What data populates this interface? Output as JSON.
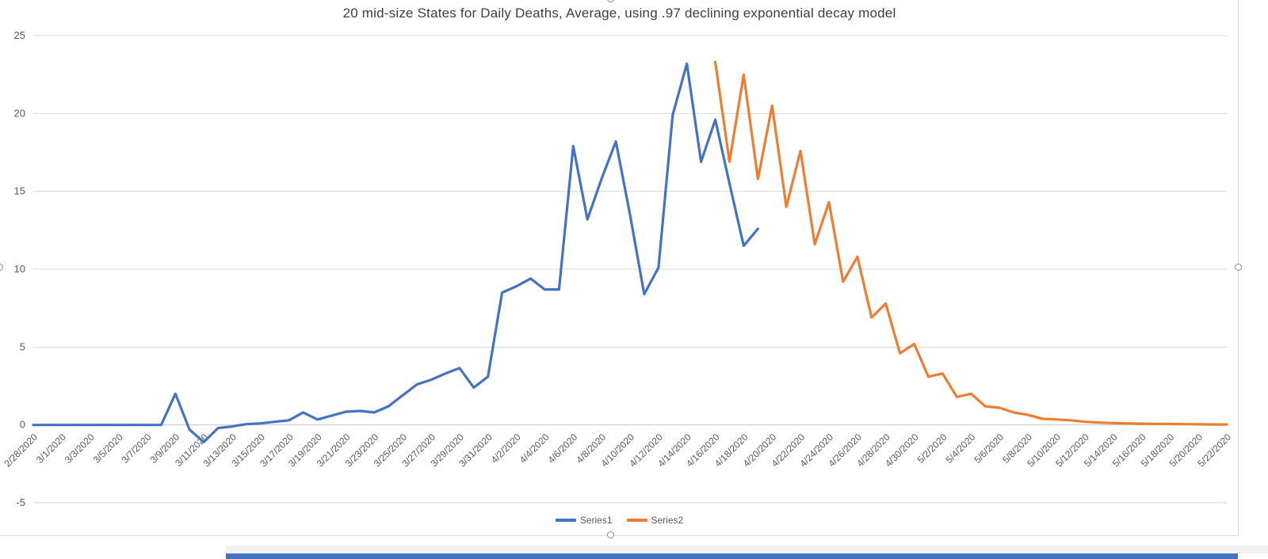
{
  "colors": {
    "series1": "#4472C4",
    "series2": "#ED7D31",
    "gridline": "#D9D9D9",
    "axis_line": "#C6C6C6",
    "axis_text": "#595959",
    "title_text": "#3F3F3F",
    "chart_border": "#D8D8D8",
    "bottom_bar": "#4472C4"
  },
  "chart_data": {
    "type": "line",
    "title": "20 mid-size States for Daily Deaths, Average, using .97 declining exponential decay model",
    "xlabel": "",
    "ylabel": "",
    "ylim": [
      -5,
      25
    ],
    "yticks": [
      25,
      20,
      15,
      10,
      5,
      0,
      -5
    ],
    "x_tick_step": 2,
    "grid": true,
    "legend_position": "bottom",
    "x": [
      "2/28/2020",
      "2/29/2020",
      "3/1/2020",
      "3/2/2020",
      "3/3/2020",
      "3/4/2020",
      "3/5/2020",
      "3/6/2020",
      "3/7/2020",
      "3/8/2020",
      "3/9/2020",
      "3/10/2020",
      "3/11/2020",
      "3/12/2020",
      "3/13/2020",
      "3/14/2020",
      "3/15/2020",
      "3/16/2020",
      "3/17/2020",
      "3/18/2020",
      "3/19/2020",
      "3/20/2020",
      "3/21/2020",
      "3/22/2020",
      "3/23/2020",
      "3/24/2020",
      "3/25/2020",
      "3/26/2020",
      "3/27/2020",
      "3/28/2020",
      "3/29/2020",
      "3/30/2020",
      "3/31/2020",
      "4/1/2020",
      "4/2/2020",
      "4/3/2020",
      "4/4/2020",
      "4/5/2020",
      "4/6/2020",
      "4/7/2020",
      "4/8/2020",
      "4/9/2020",
      "4/10/2020",
      "4/11/2020",
      "4/12/2020",
      "4/13/2020",
      "4/14/2020",
      "4/15/2020",
      "4/16/2020",
      "4/17/2020",
      "4/18/2020",
      "4/19/2020",
      "4/20/2020",
      "4/21/2020",
      "4/22/2020",
      "4/23/2020",
      "4/24/2020",
      "4/25/2020",
      "4/26/2020",
      "4/27/2020",
      "4/28/2020",
      "4/29/2020",
      "4/30/2020",
      "5/1/2020",
      "5/2/2020",
      "5/3/2020",
      "5/4/2020",
      "5/5/2020",
      "5/6/2020",
      "5/7/2020",
      "5/8/2020",
      "5/9/2020",
      "5/10/2020",
      "5/11/2020",
      "5/12/2020",
      "5/13/2020",
      "5/14/2020",
      "5/15/2020",
      "5/16/2020",
      "5/17/2020",
      "5/18/2020",
      "5/19/2020",
      "5/20/2020",
      "5/21/2020",
      "5/22/2020"
    ],
    "series": [
      {
        "name": "Series1",
        "color": "#4472C4",
        "values": [
          0,
          0,
          0,
          0,
          0,
          0,
          0,
          0,
          0,
          0,
          2,
          -0.3,
          -1.1,
          -0.2,
          -0.1,
          0.05,
          0.1,
          0.2,
          0.3,
          0.8,
          0.35,
          0.6,
          0.85,
          0.9,
          0.8,
          1.2,
          1.9,
          2.6,
          2.9,
          3.3,
          3.65,
          2.4,
          3.1,
          8.5,
          8.9,
          9.4,
          8.7,
          8.7,
          17.9,
          13.2,
          15.8,
          18.2,
          13.5,
          8.4,
          10.1,
          19.9,
          23.2,
          16.9,
          19.6,
          15.5,
          11.5,
          12.6,
          null,
          null,
          null,
          null,
          null,
          null,
          null,
          null,
          null,
          null,
          null,
          null,
          null,
          null,
          null,
          null,
          null,
          null,
          null,
          null,
          null,
          null,
          null,
          null,
          null,
          null,
          null,
          null,
          null,
          null,
          null,
          null,
          null
        ]
      },
      {
        "name": "Series2",
        "color": "#ED7D31",
        "values": [
          null,
          null,
          null,
          null,
          null,
          null,
          null,
          null,
          null,
          null,
          null,
          null,
          null,
          null,
          null,
          null,
          null,
          null,
          null,
          null,
          null,
          null,
          null,
          null,
          null,
          null,
          null,
          null,
          null,
          null,
          null,
          null,
          null,
          null,
          null,
          null,
          null,
          null,
          null,
          null,
          null,
          null,
          null,
          null,
          null,
          null,
          null,
          null,
          23.3,
          16.9,
          22.5,
          15.8,
          20.5,
          14,
          17.6,
          11.6,
          14.3,
          9.2,
          10.8,
          6.9,
          7.8,
          4.6,
          5.2,
          3.1,
          3.3,
          1.8,
          2,
          1.2,
          1.1,
          0.8,
          0.65,
          0.4,
          0.35,
          0.3,
          0.2,
          0.15,
          0.12,
          0.1,
          0.08,
          0.07,
          0.06,
          0.05,
          0.04,
          0.03,
          0.03
        ]
      }
    ]
  }
}
